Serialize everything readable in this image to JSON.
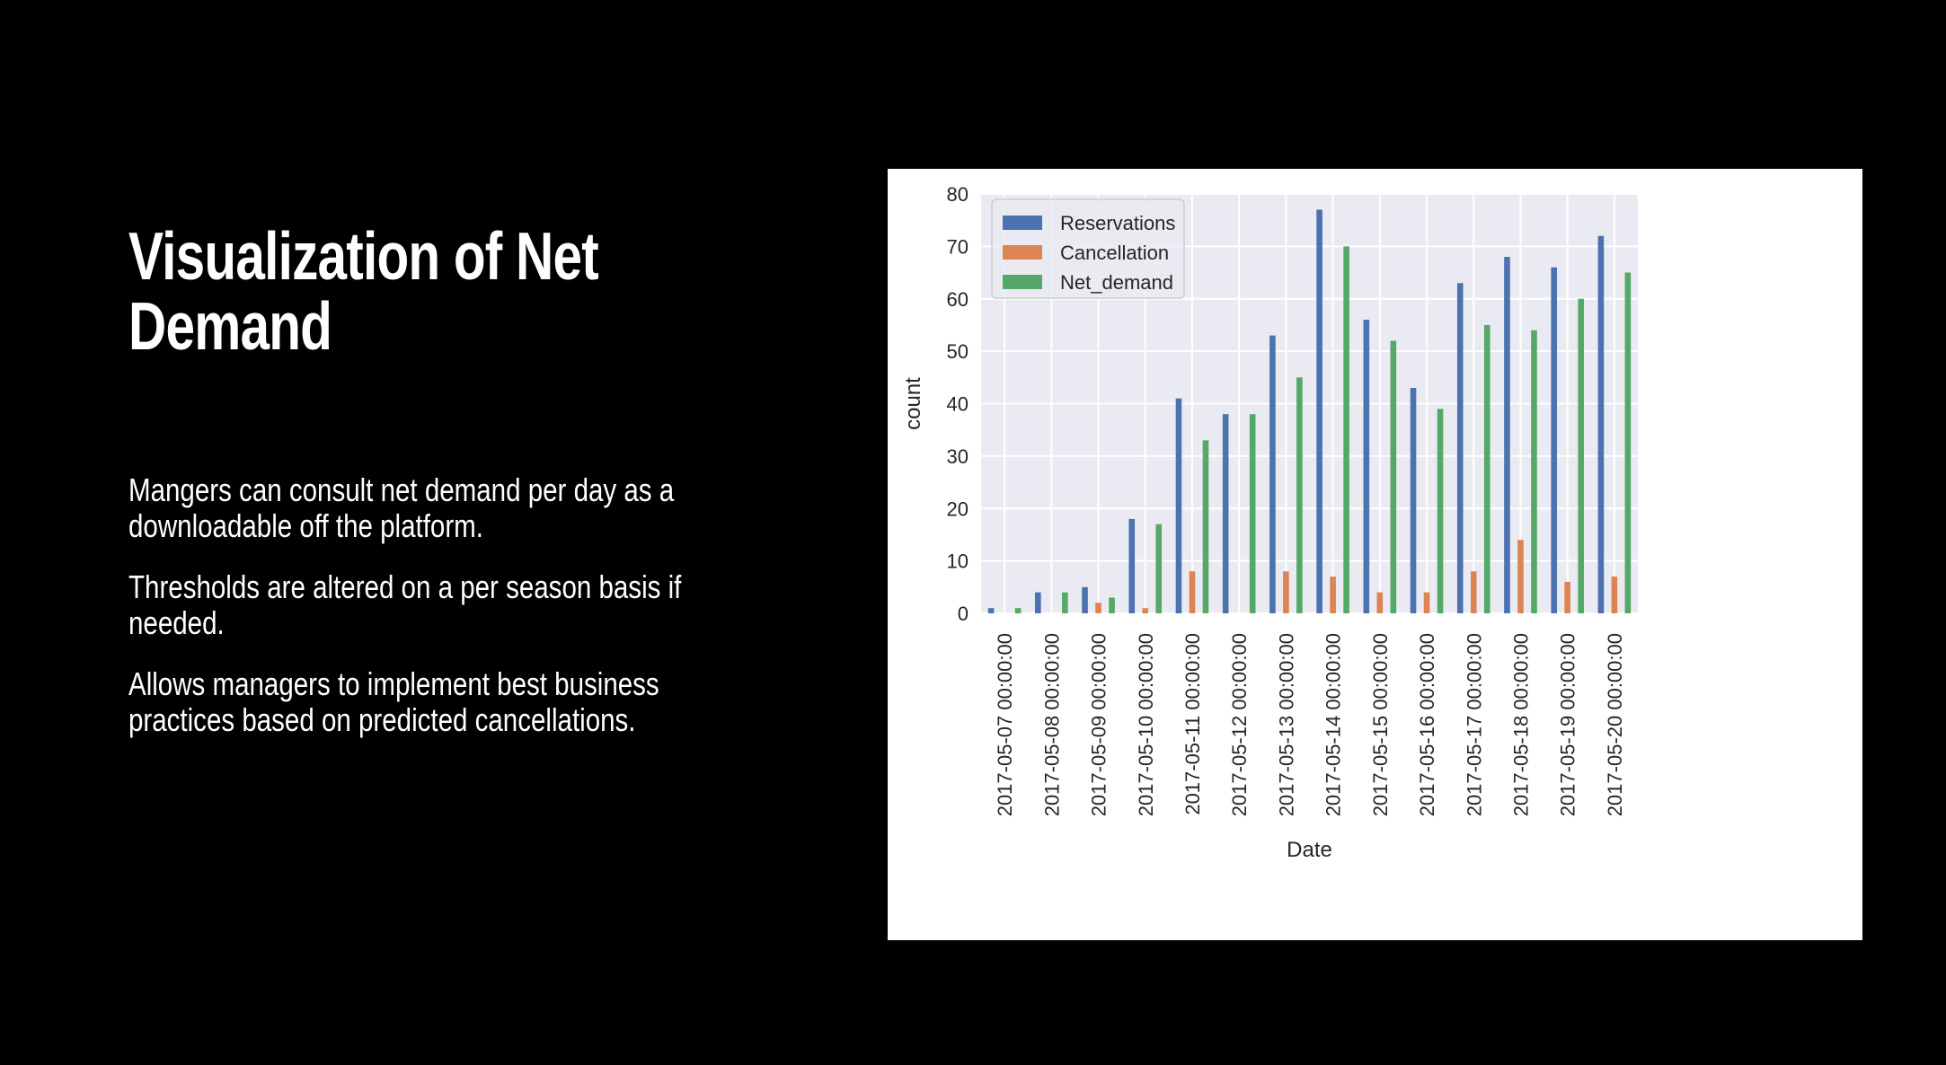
{
  "slide": {
    "title": "Visualization of Net Demand",
    "paragraphs": [
      "Mangers can consult net demand per day as a downloadable off the platform.",
      "Thresholds are altered on a per season basis if needed.",
      "Allows managers to implement best business practices based on predicted cancellations."
    ]
  },
  "chart_data": {
    "type": "bar",
    "xlabel": "Date",
    "ylabel": "count",
    "ylim": [
      0,
      80
    ],
    "yticks": [
      0,
      10,
      20,
      30,
      40,
      50,
      60,
      70,
      80
    ],
    "grid": true,
    "legend_position": "top-left",
    "categories": [
      "2017-05-07 00:00:00",
      "2017-05-08 00:00:00",
      "2017-05-09 00:00:00",
      "2017-05-10 00:00:00",
      "2017-05-11 00:00:00",
      "2017-05-12 00:00:00",
      "2017-05-13 00:00:00",
      "2017-05-14 00:00:00",
      "2017-05-15 00:00:00",
      "2017-05-16 00:00:00",
      "2017-05-17 00:00:00",
      "2017-05-18 00:00:00",
      "2017-05-19 00:00:00",
      "2017-05-20 00:00:00"
    ],
    "series": [
      {
        "name": "Reservations",
        "color": "#4c72b0",
        "values": [
          1,
          4,
          5,
          18,
          41,
          38,
          53,
          77,
          56,
          43,
          63,
          68,
          66,
          72
        ]
      },
      {
        "name": "Cancellation",
        "color": "#dd8452",
        "values": [
          0,
          0,
          2,
          1,
          8,
          0,
          8,
          7,
          4,
          4,
          8,
          14,
          6,
          7
        ]
      },
      {
        "name": "Net_demand",
        "color": "#55a868",
        "values": [
          1,
          4,
          3,
          17,
          33,
          38,
          45,
          70,
          52,
          39,
          55,
          54,
          60,
          65
        ]
      }
    ]
  }
}
